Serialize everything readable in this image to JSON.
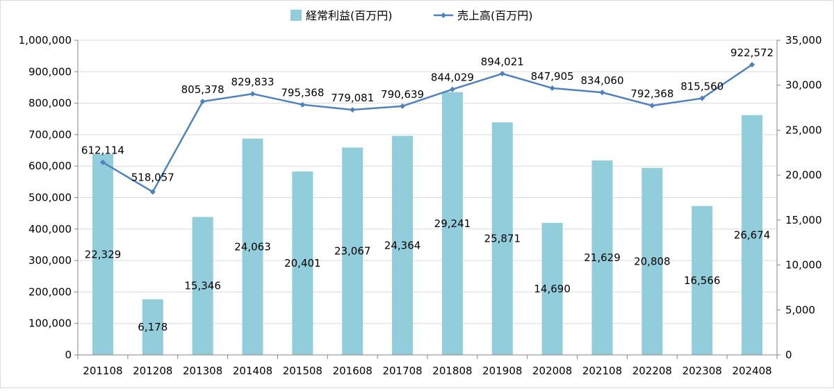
{
  "chart_data": {
    "type": "bar+line",
    "title": "",
    "categories": [
      "201108",
      "201208",
      "201308",
      "201408",
      "201508",
      "201608",
      "201708",
      "201808",
      "201908",
      "202008",
      "202108",
      "202208",
      "202308",
      "202408"
    ],
    "series": [
      {
        "name": "経常利益(百万円)",
        "type": "bar",
        "axis": "right",
        "color": "#92cddc",
        "values": [
          22329,
          6178,
          15346,
          24063,
          20401,
          23067,
          24364,
          29241,
          25871,
          14690,
          21629,
          20808,
          16566,
          26674
        ],
        "labels": [
          "22,329",
          "6,178",
          "15,346",
          "24,063",
          "20,401",
          "23,067",
          "24,364",
          "29,241",
          "25,871",
          "14,690",
          "21,629",
          "20,808",
          "16,566",
          "26,674"
        ]
      },
      {
        "name": "売上高(百万円)",
        "type": "line",
        "axis": "left",
        "color": "#4f81bd",
        "values": [
          612114,
          518057,
          805378,
          829833,
          795368,
          779081,
          790639,
          844029,
          894021,
          847905,
          834060,
          792368,
          815560,
          922572
        ],
        "labels": [
          "612,114",
          "518,057",
          "805,378",
          "829,833",
          "795,368",
          "779,081",
          "790,639",
          "844,029",
          "894,021",
          "847,905",
          "834,060",
          "792,368",
          "815,560",
          "922,572"
        ]
      }
    ],
    "y_left": {
      "min": 0,
      "max": 1000000,
      "ticks": [
        0,
        100000,
        200000,
        300000,
        400000,
        500000,
        600000,
        700000,
        800000,
        900000,
        1000000
      ],
      "tick_labels": [
        "0",
        "100,000",
        "200,000",
        "300,000",
        "400,000",
        "500,000",
        "600,000",
        "700,000",
        "800,000",
        "900,000",
        "1,000,000"
      ]
    },
    "y_right": {
      "min": 0,
      "max": 35000,
      "ticks": [
        0,
        5000,
        10000,
        15000,
        20000,
        25000,
        30000,
        35000
      ],
      "tick_labels": [
        "0",
        "5,000",
        "10,000",
        "15,000",
        "20,000",
        "25,000",
        "30,000",
        "35,000"
      ]
    },
    "grid": true,
    "legend_position": "top-center"
  }
}
